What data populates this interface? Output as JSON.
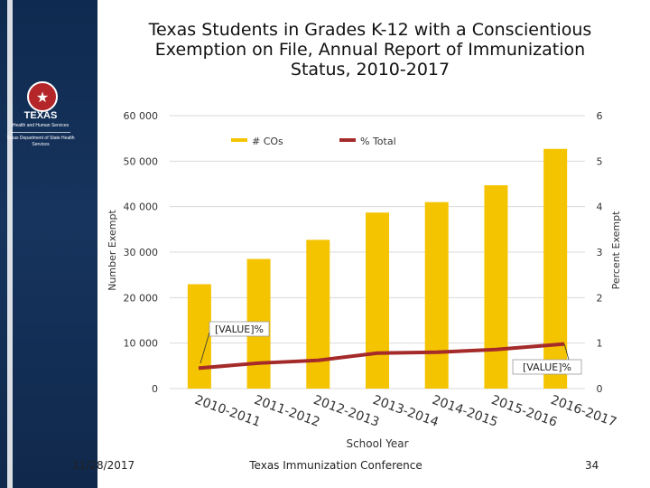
{
  "logo": {
    "line1": "TEXAS",
    "line2": "Health and Human Services",
    "line3": "Texas Department of State Health Services"
  },
  "title": "Texas Students in Grades K-12 with a Conscientious Exemption on File, Annual Report of Immunization Status, 2010-2017",
  "footer": {
    "date": "11/28/2017",
    "conference": "Texas Immunization Conference",
    "page": "34"
  },
  "colors": {
    "bar": "#f5c400",
    "line": "#a52a2a",
    "sidebar": "#16345e",
    "grid": "#d9d9d9"
  },
  "chart_data": {
    "type": "bar",
    "title": "Texas Students in Grades K-12 with a Conscientious Exemption on File, Annual Report of Immunization Status, 2010-2017",
    "xlabel": "School Year",
    "ylabel": "Number Exempt",
    "y2label": "Percent Exempt",
    "categories": [
      "2010-2011",
      "2011-2012",
      "2012-2013",
      "2013-2014",
      "2014-2015",
      "2015-2016",
      "2016-2017"
    ],
    "ylim": [
      0,
      60000
    ],
    "y2lim": [
      0,
      6
    ],
    "yticks": [
      "0",
      "10 000",
      "20 000",
      "30 000",
      "40 000",
      "50 000",
      "60 000"
    ],
    "y2ticks": [
      "0",
      "1",
      "2",
      "3",
      "4",
      "5",
      "6"
    ],
    "series": [
      {
        "name": "# COs",
        "type": "bar",
        "axis": "left",
        "values": [
          22950,
          28500,
          32700,
          38700,
          41000,
          44700,
          52700
        ]
      },
      {
        "name": "% Total",
        "type": "line",
        "axis": "right",
        "values": [
          0.45,
          0.56,
          0.62,
          0.78,
          0.8,
          0.86,
          0.98
        ]
      }
    ],
    "data_labels": [
      "[VALUE]%",
      "[VALUE]%"
    ],
    "legend": "top-center"
  }
}
